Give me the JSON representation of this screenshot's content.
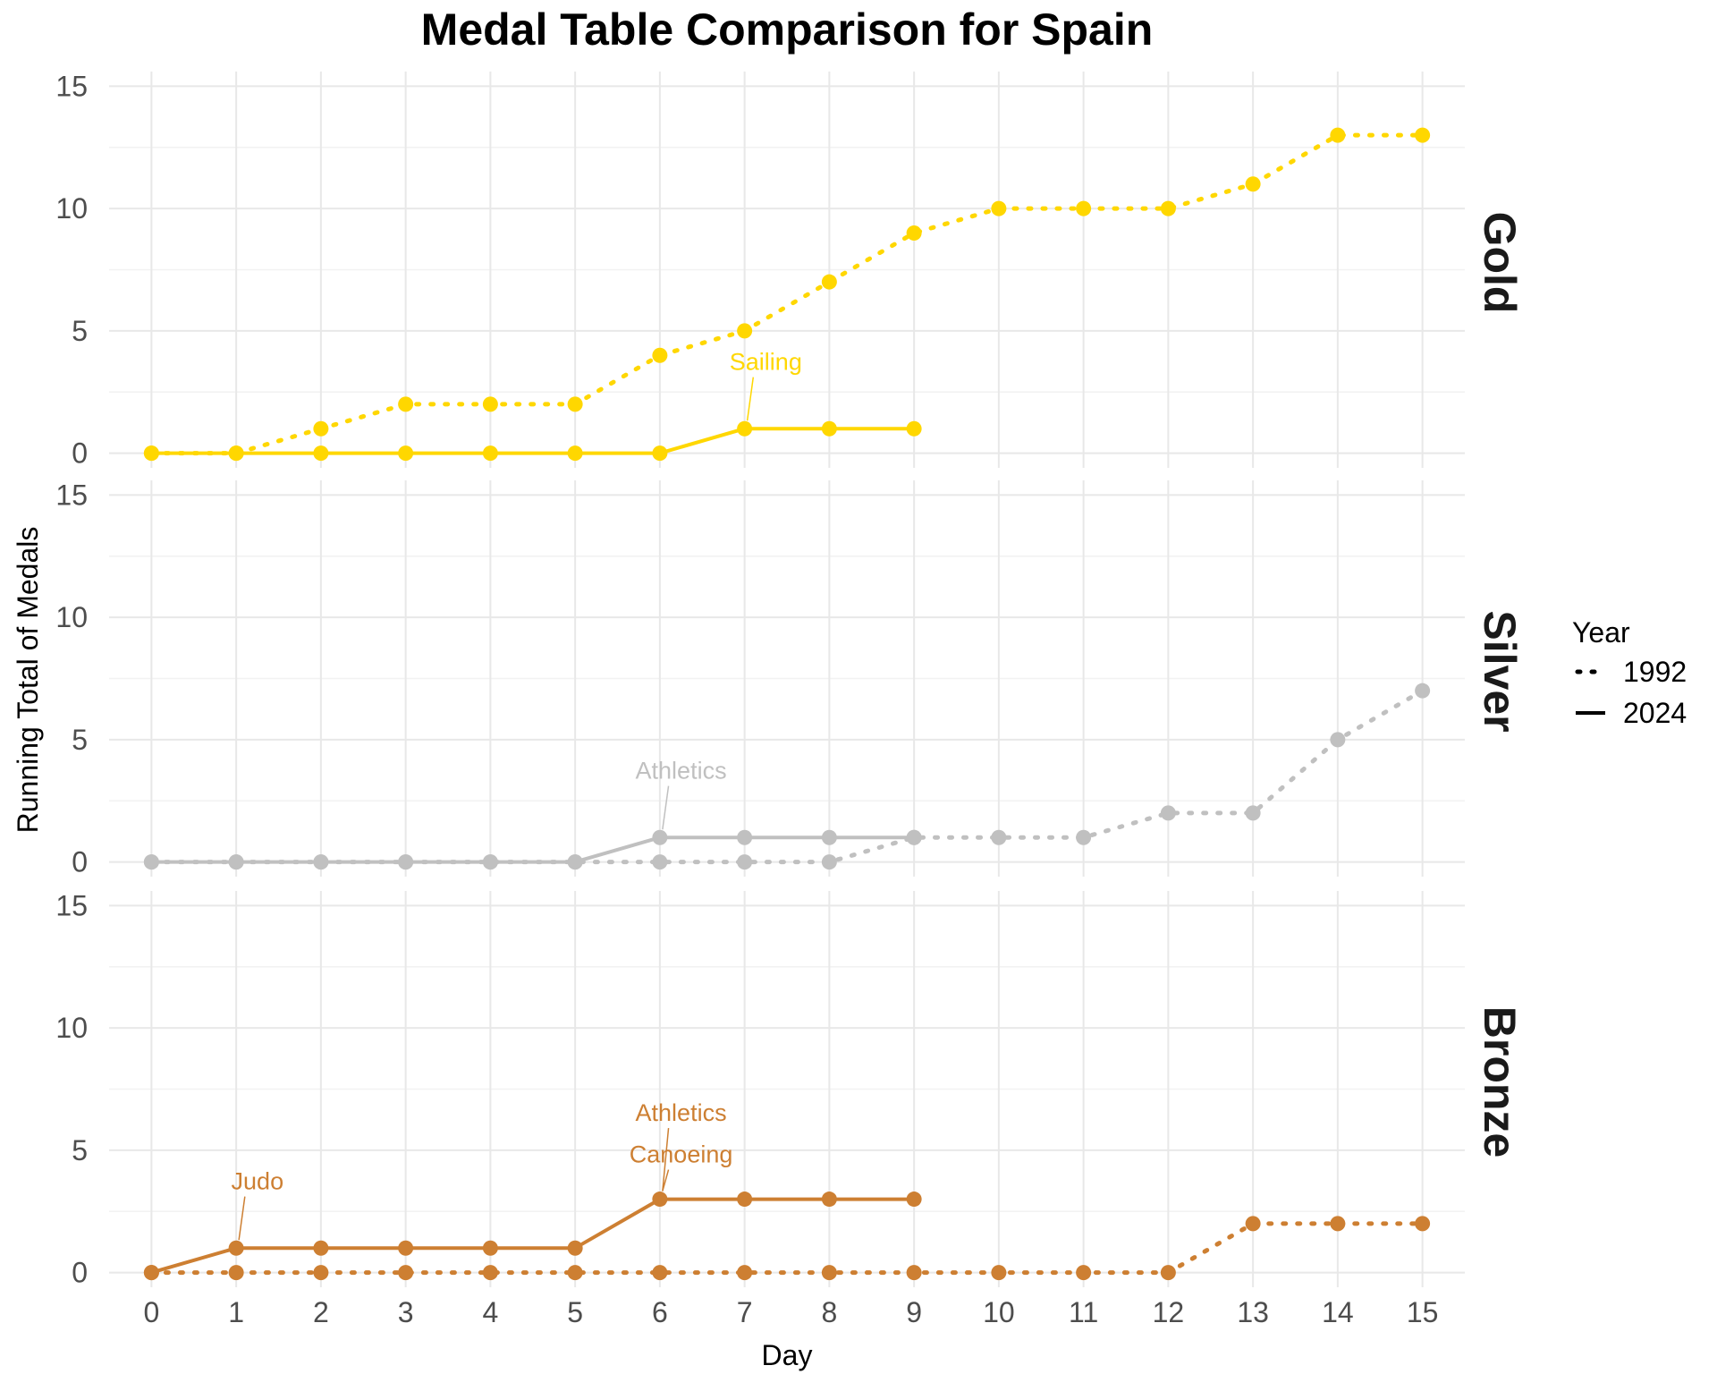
{
  "chart_data": {
    "type": "line",
    "title": "Medal Table Comparison for Spain",
    "xlabel": "Day",
    "ylabel": "Running Total of Medals",
    "xlim": [
      -0.5,
      15.5
    ],
    "ylim": [
      -0.6,
      15.6
    ],
    "x_ticks": [
      0,
      1,
      2,
      3,
      4,
      5,
      6,
      7,
      8,
      9,
      10,
      11,
      12,
      13,
      14,
      15
    ],
    "y_ticks": [
      0,
      5,
      10,
      15
    ],
    "grid": true,
    "legend": {
      "title": "Year",
      "placement": "right",
      "entries": [
        {
          "label": "1992",
          "linetype": "dotted"
        },
        {
          "label": "2024",
          "linetype": "solid"
        }
      ]
    },
    "panels": [
      {
        "name": "Gold",
        "color": "#FFD700",
        "series": [
          {
            "year": "1992",
            "linetype": "dotted",
            "x": [
              0,
              1,
              2,
              3,
              4,
              5,
              6,
              7,
              8,
              9,
              10,
              11,
              12,
              13,
              14,
              15
            ],
            "y": [
              0,
              0,
              1,
              2,
              2,
              2,
              4,
              5,
              7,
              9,
              10,
              10,
              10,
              11,
              13,
              13
            ]
          },
          {
            "year": "2024",
            "linetype": "solid",
            "x": [
              0,
              1,
              2,
              3,
              4,
              5,
              6,
              7,
              8,
              9
            ],
            "y": [
              0,
              0,
              0,
              0,
              0,
              0,
              0,
              1,
              1,
              1
            ]
          }
        ],
        "annotations": [
          {
            "text": "Sailing",
            "x": 7,
            "y": 1,
            "label_x": 7.25,
            "label_y": 3.4
          }
        ]
      },
      {
        "name": "Silver",
        "color": "#C0C0C0",
        "series": [
          {
            "year": "1992",
            "linetype": "dotted",
            "x": [
              0,
              1,
              2,
              3,
              4,
              5,
              6,
              7,
              8,
              9,
              10,
              11,
              12,
              13,
              14,
              15
            ],
            "y": [
              0,
              0,
              0,
              0,
              0,
              0,
              0,
              0,
              0,
              1,
              1,
              1,
              2,
              2,
              5,
              7
            ]
          },
          {
            "year": "2024",
            "linetype": "solid",
            "x": [
              0,
              1,
              2,
              3,
              4,
              5,
              6,
              7,
              8,
              9
            ],
            "y": [
              0,
              0,
              0,
              0,
              0,
              0,
              1,
              1,
              1,
              1
            ]
          }
        ],
        "annotations": [
          {
            "text": "Athletics",
            "x": 6,
            "y": 1,
            "label_x": 6.25,
            "label_y": 3.4
          }
        ]
      },
      {
        "name": "Bronze",
        "color": "#CD7F32",
        "series": [
          {
            "year": "1992",
            "linetype": "dotted",
            "x": [
              0,
              1,
              2,
              3,
              4,
              5,
              6,
              7,
              8,
              9,
              10,
              11,
              12,
              13,
              14,
              15
            ],
            "y": [
              0,
              0,
              0,
              0,
              0,
              0,
              0,
              0,
              0,
              0,
              0,
              0,
              0,
              2,
              2,
              2
            ]
          },
          {
            "year": "2024",
            "linetype": "solid",
            "x": [
              0,
              1,
              2,
              3,
              4,
              5,
              6,
              7,
              8,
              9
            ],
            "y": [
              0,
              1,
              1,
              1,
              1,
              1,
              3,
              3,
              3,
              3
            ]
          }
        ],
        "annotations": [
          {
            "text": "Judo",
            "x": 1,
            "y": 1,
            "label_x": 1.25,
            "label_y": 3.4
          },
          {
            "text": "Canoeing",
            "x": 6,
            "y": 3,
            "label_x": 6.25,
            "label_y": 4.5
          },
          {
            "text": "Athletics",
            "x": 6,
            "y": 3,
            "label_x": 6.25,
            "label_y": 6.2
          }
        ]
      }
    ]
  }
}
